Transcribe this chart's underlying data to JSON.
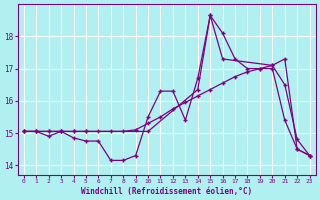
{
  "xlabel": "Windchill (Refroidissement éolien,°C)",
  "bg_color": "#b0f0f0",
  "grid_color": "#ffffff",
  "line_color": "#800080",
  "xlim": [
    -0.5,
    23.5
  ],
  "ylim": [
    13.7,
    19.0
  ],
  "yticks": [
    14,
    15,
    16,
    17,
    18
  ],
  "xticks": [
    0,
    1,
    2,
    3,
    4,
    5,
    6,
    7,
    8,
    9,
    10,
    11,
    12,
    13,
    14,
    15,
    16,
    17,
    18,
    19,
    20,
    21,
    22,
    23
  ],
  "series1_x": [
    0,
    1,
    2,
    3,
    4,
    5,
    6,
    7,
    8,
    9,
    10,
    11,
    12,
    13,
    14,
    15,
    16,
    17,
    18,
    19,
    20,
    21,
    22,
    23
  ],
  "series1_y": [
    15.05,
    15.05,
    14.9,
    15.05,
    14.85,
    14.75,
    14.75,
    14.15,
    14.15,
    14.3,
    15.5,
    16.3,
    16.3,
    15.4,
    16.7,
    18.65,
    18.1,
    17.3,
    17.0,
    17.0,
    17.0,
    15.4,
    14.5,
    14.3
  ],
  "series2_x": [
    0,
    1,
    2,
    3,
    4,
    5,
    6,
    7,
    8,
    9,
    10,
    11,
    12,
    13,
    14,
    15,
    16,
    17,
    18,
    19,
    20,
    21,
    22,
    23
  ],
  "series2_y": [
    15.05,
    15.05,
    15.05,
    15.05,
    15.05,
    15.05,
    15.05,
    15.05,
    15.05,
    15.1,
    15.3,
    15.5,
    15.75,
    15.95,
    16.15,
    16.35,
    16.55,
    16.75,
    16.9,
    17.0,
    17.1,
    16.5,
    14.8,
    14.3
  ],
  "series3_x": [
    0,
    1,
    2,
    3,
    4,
    5,
    10,
    14,
    15,
    16,
    20,
    21,
    22,
    23
  ],
  "series3_y": [
    15.05,
    15.05,
    15.05,
    15.05,
    15.05,
    15.05,
    15.05,
    16.35,
    18.65,
    17.3,
    17.1,
    17.3,
    14.5,
    14.3
  ]
}
